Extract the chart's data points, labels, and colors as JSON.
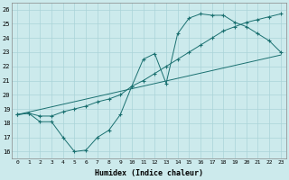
{
  "xlabel": "Humidex (Indice chaleur)",
  "xlim": [
    -0.5,
    23.5
  ],
  "ylim": [
    15.5,
    26.5
  ],
  "xticks": [
    0,
    1,
    2,
    3,
    4,
    5,
    6,
    7,
    8,
    9,
    10,
    11,
    12,
    13,
    14,
    15,
    16,
    17,
    18,
    19,
    20,
    21,
    22,
    23
  ],
  "yticks": [
    16,
    17,
    18,
    19,
    20,
    21,
    22,
    23,
    24,
    25,
    26
  ],
  "bg_color": "#cceaec",
  "grid_color": "#aad4d8",
  "line_color": "#1a7070",
  "line1_x": [
    0,
    1,
    2,
    3,
    4,
    5,
    6,
    7,
    8,
    9,
    10,
    11,
    12,
    13,
    14,
    15,
    16,
    17,
    18,
    19,
    20,
    21,
    22,
    23
  ],
  "line1_y": [
    18.6,
    18.7,
    18.1,
    18.1,
    17.0,
    16.0,
    16.1,
    17.0,
    17.5,
    18.6,
    20.6,
    22.5,
    22.9,
    20.8,
    24.3,
    25.4,
    25.7,
    25.6,
    25.6,
    25.1,
    24.8,
    24.3,
    23.8,
    23.0
  ],
  "line2_x": [
    0,
    1,
    2,
    3,
    4,
    5,
    6,
    7,
    8,
    9,
    10,
    11,
    12,
    13,
    14,
    15,
    16,
    17,
    18,
    19,
    20,
    21,
    22,
    23
  ],
  "line2_y": [
    18.6,
    18.7,
    18.5,
    18.5,
    18.8,
    19.0,
    19.2,
    19.5,
    19.7,
    20.0,
    20.6,
    21.0,
    21.5,
    22.0,
    22.5,
    23.0,
    23.5,
    24.0,
    24.5,
    24.8,
    25.1,
    25.3,
    25.5,
    25.7
  ],
  "line3_x": [
    0,
    23
  ],
  "line3_y": [
    18.6,
    22.8
  ]
}
